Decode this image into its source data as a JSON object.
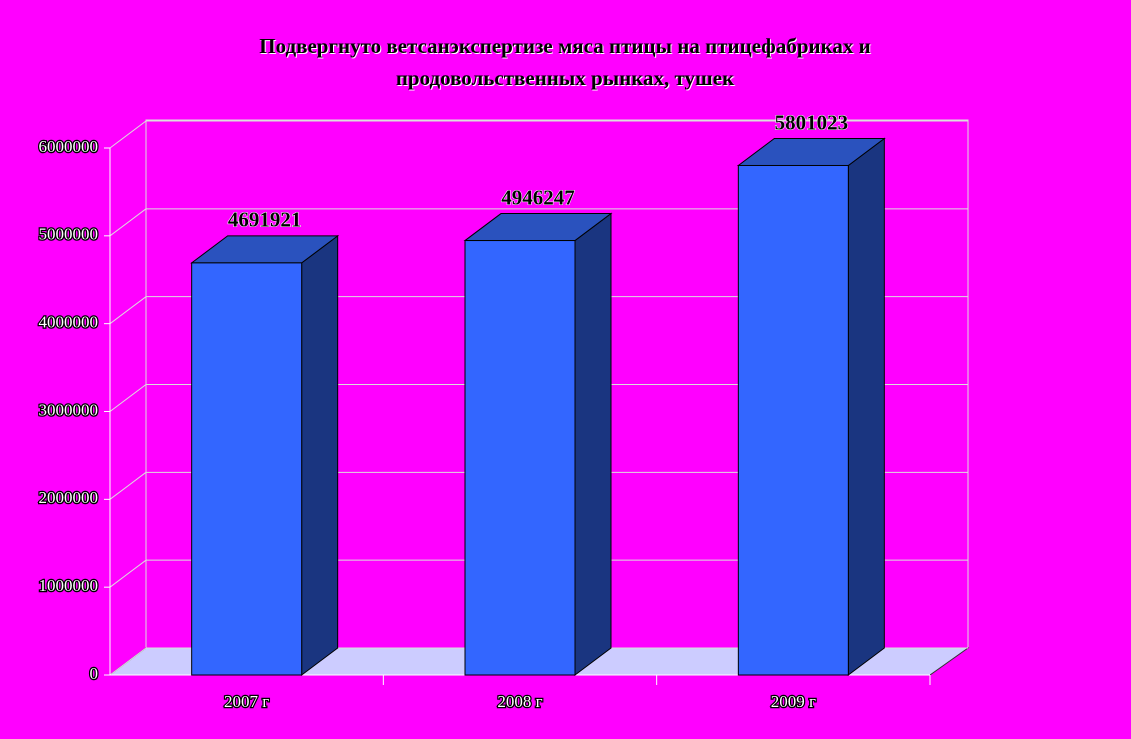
{
  "chart_data": {
    "type": "bar3d",
    "title": "Подвергнуто ветсанэкспертизе мяса птицы на птицефабриках и продовольственных рынках, тушек",
    "categories": [
      "2007 г",
      "2008 г",
      "2009 г"
    ],
    "values": [
      4691921,
      4946247,
      5801023
    ],
    "color": "#3366ff",
    "ylim": [
      0,
      6000000
    ],
    "yticks": [
      0,
      1000000,
      2000000,
      3000000,
      4000000,
      5000000,
      6000000
    ],
    "grid": true
  }
}
